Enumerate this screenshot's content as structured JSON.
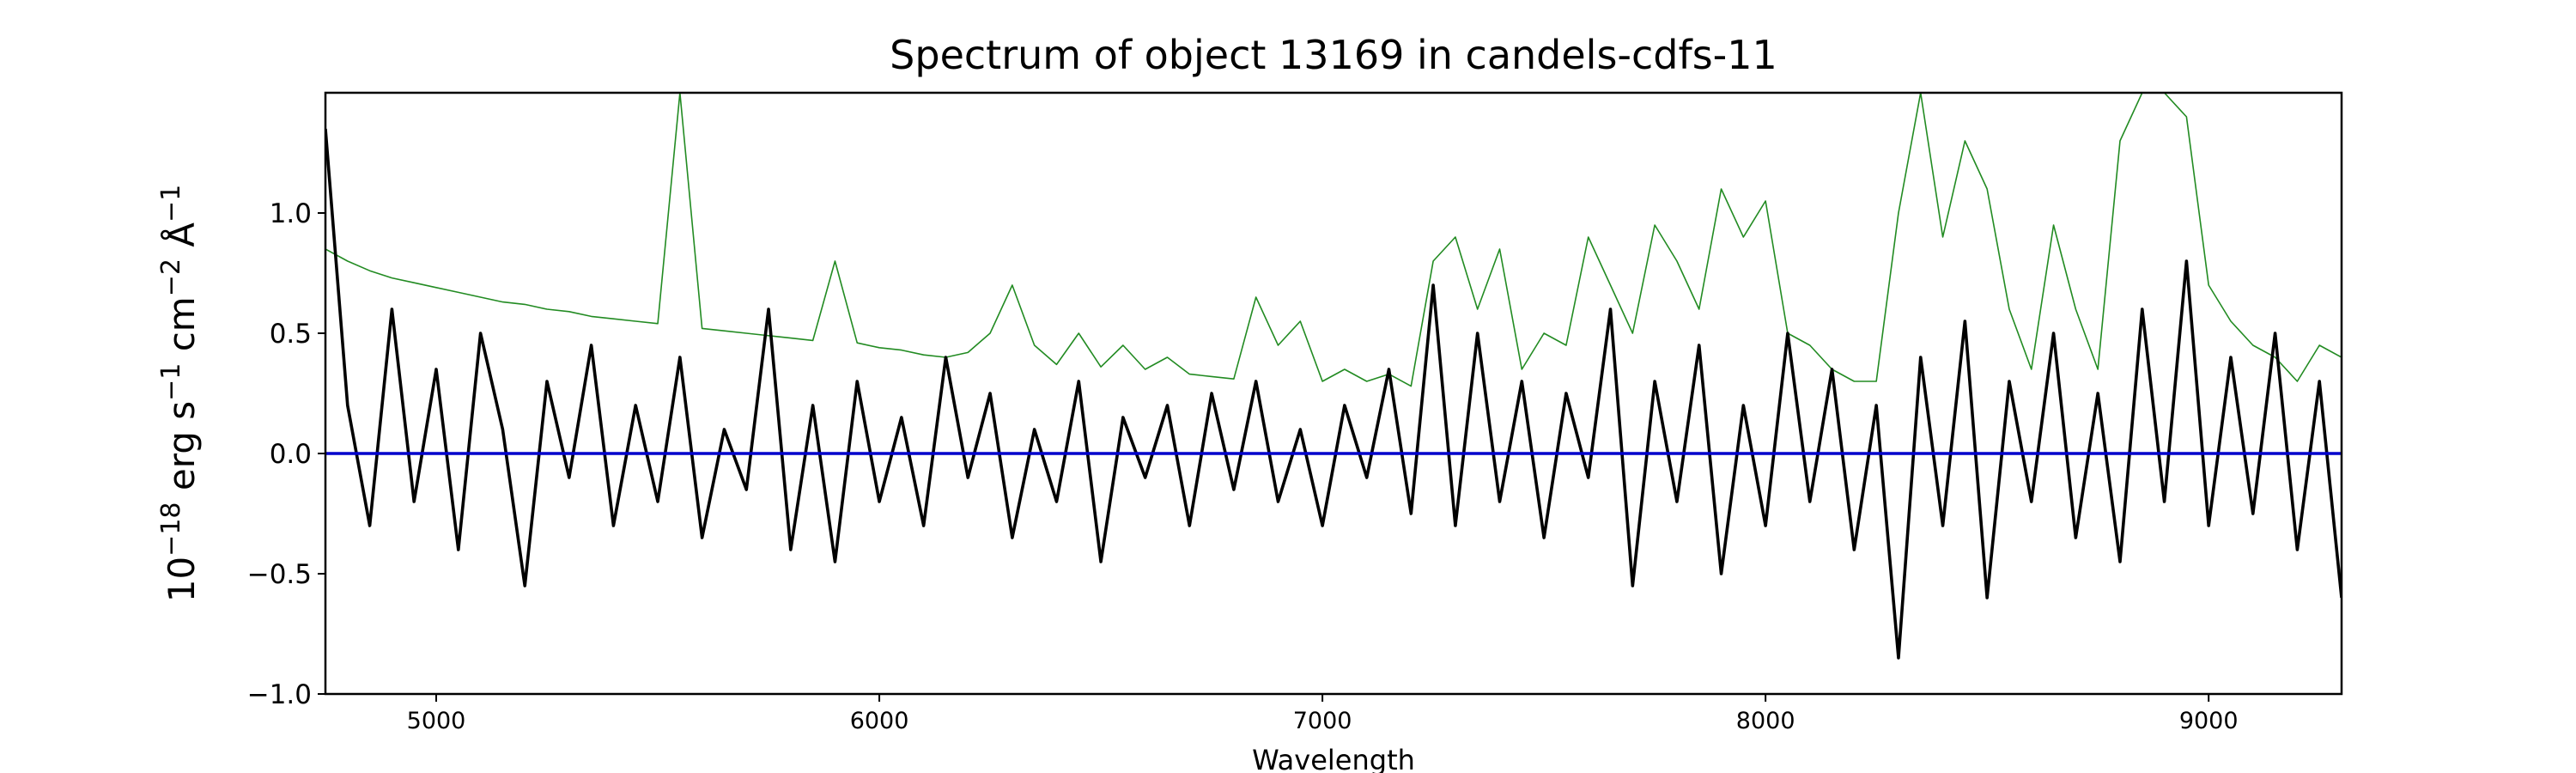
{
  "chart_data": {
    "type": "line",
    "title": "Spectrum of object 13169 in candels-cdfs-11",
    "xlabel": "Wavelength",
    "ylabel": [
      "10",
      "−18",
      " erg s",
      "−1",
      " cm",
      "−2",
      " Å",
      "−1"
    ],
    "xlim": [
      4750,
      9300
    ],
    "ylim": [
      -1,
      1.5
    ],
    "xticks": [
      5000,
      6000,
      7000,
      8000,
      9000
    ],
    "yticks": [
      {
        "value": -1,
        "label": "−1.0"
      },
      {
        "value": -0.5,
        "label": "−0.5"
      },
      {
        "value": 0,
        "label": "0.0"
      },
      {
        "value": 0.5,
        "label": "0.5"
      },
      {
        "value": 1,
        "label": "1.0"
      }
    ],
    "x": [
      4750,
      4800,
      4850,
      4900,
      4950,
      5000,
      5050,
      5100,
      5150,
      5200,
      5250,
      5300,
      5350,
      5400,
      5450,
      5500,
      5550,
      5600,
      5650,
      5700,
      5750,
      5800,
      5850,
      5900,
      5950,
      6000,
      6050,
      6100,
      6150,
      6200,
      6250,
      6300,
      6350,
      6400,
      6450,
      6500,
      6550,
      6600,
      6650,
      6700,
      6750,
      6800,
      6850,
      6900,
      6950,
      7000,
      7050,
      7100,
      7150,
      7200,
      7250,
      7300,
      7350,
      7400,
      7450,
      7500,
      7550,
      7600,
      7650,
      7700,
      7750,
      7800,
      7850,
      7900,
      7950,
      8000,
      8050,
      8100,
      8150,
      8200,
      8250,
      8300,
      8350,
      8400,
      8450,
      8500,
      8550,
      8600,
      8650,
      8700,
      8750,
      8800,
      8850,
      8900,
      8950,
      9000,
      9050,
      9100,
      9150,
      9200,
      9250,
      9300
    ],
    "series": [
      {
        "color": "#228b22",
        "width": 1.6,
        "values": [
          0.85,
          0.8,
          0.76,
          0.73,
          0.71,
          0.69,
          0.67,
          0.65,
          0.63,
          0.62,
          0.6,
          0.59,
          0.57,
          0.56,
          0.55,
          0.54,
          1.5,
          0.52,
          0.51,
          0.5,
          0.49,
          0.48,
          0.47,
          0.8,
          0.46,
          0.44,
          0.43,
          0.41,
          0.4,
          0.42,
          0.5,
          0.7,
          0.45,
          0.37,
          0.5,
          0.36,
          0.45,
          0.35,
          0.4,
          0.33,
          0.32,
          0.31,
          0.65,
          0.45,
          0.55,
          0.3,
          0.35,
          0.3,
          0.33,
          0.28,
          0.8,
          0.9,
          0.6,
          0.85,
          0.35,
          0.5,
          0.45,
          0.9,
          0.7,
          0.5,
          0.95,
          0.8,
          0.6,
          1.1,
          0.9,
          1.05,
          0.5,
          0.45,
          0.35,
          0.3,
          0.3,
          1.0,
          1.5,
          0.9,
          1.3,
          1.1,
          0.6,
          0.35,
          0.95,
          0.6,
          0.35,
          1.3,
          1.5,
          1.5,
          1.4,
          0.7,
          0.55,
          0.45,
          0.4,
          0.3,
          0.45,
          0.4
        ]
      },
      {
        "color": "#000000",
        "width": 3.6,
        "values": [
          1.35,
          0.2,
          -0.3,
          0.6,
          -0.2,
          0.35,
          -0.4,
          0.5,
          0.1,
          -0.55,
          0.3,
          -0.1,
          0.45,
          -0.3,
          0.2,
          -0.2,
          0.4,
          -0.35,
          0.1,
          -0.15,
          0.6,
          -0.4,
          0.2,
          -0.45,
          0.3,
          -0.2,
          0.15,
          -0.3,
          0.4,
          -0.1,
          0.25,
          -0.35,
          0.1,
          -0.2,
          0.3,
          -0.45,
          0.15,
          -0.1,
          0.2,
          -0.3,
          0.25,
          -0.15,
          0.3,
          -0.2,
          0.1,
          -0.3,
          0.2,
          -0.1,
          0.35,
          -0.25,
          0.7,
          -0.3,
          0.5,
          -0.2,
          0.3,
          -0.35,
          0.25,
          -0.1,
          0.6,
          -0.55,
          0.3,
          -0.2,
          0.45,
          -0.5,
          0.2,
          -0.3,
          0.5,
          -0.2,
          0.35,
          -0.4,
          0.2,
          -0.85,
          0.4,
          -0.3,
          0.55,
          -0.6,
          0.3,
          -0.2,
          0.5,
          -0.35,
          0.25,
          -0.45,
          0.6,
          -0.2,
          0.8,
          -0.3,
          0.4,
          -0.25,
          0.5,
          -0.4,
          0.3,
          -0.6
        ]
      },
      {
        "color": "#0000cc",
        "width": 3.6,
        "values": [
          0,
          0,
          0,
          0,
          0,
          0,
          0,
          0,
          0,
          0,
          0,
          0,
          0,
          0,
          0,
          0,
          0,
          0,
          0,
          0,
          0,
          0,
          0,
          0,
          0,
          0,
          0,
          0,
          0,
          0,
          0,
          0,
          0,
          0,
          0,
          0,
          0,
          0,
          0,
          0,
          0,
          0,
          0,
          0,
          0,
          0,
          0,
          0,
          0,
          0,
          0,
          0,
          0,
          0,
          0,
          0,
          0,
          0,
          0,
          0,
          0,
          0,
          0,
          0,
          0,
          0,
          0,
          0,
          0,
          0,
          0,
          0,
          0,
          0,
          0,
          0,
          0,
          0,
          0,
          0,
          0,
          0,
          0,
          0,
          0,
          0,
          0,
          0,
          0,
          0,
          0,
          0
        ]
      }
    ]
  }
}
